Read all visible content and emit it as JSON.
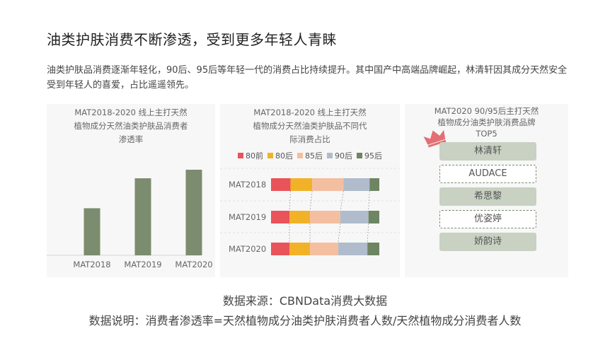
{
  "title": "油类护肤消费不断渗透，受到更多年轻人青睐",
  "paragraph": "油类护肤品消费逐渐年轻化，90后、95后等年轻一代的消费占比持续提升。其中国产中高端品牌崛起，林清轩因其成分天然安全受到年轻人的喜爱，占比遥遥领先。",
  "chart_data": [
    {
      "type": "bar",
      "title": "MAT2018-2020 线上主打天然植物成分天然油类护肤品消费者渗透率",
      "title_lines": [
        "MAT2018-2020 线上主打天然",
        "植物成分天然油类护肤品消费者",
        "渗透率"
      ],
      "categories": [
        "MAT2018",
        "MAT2019",
        "MAT2020"
      ],
      "values": [
        55,
        90,
        100
      ],
      "ylim": [
        0,
        100
      ],
      "color": "#7b8c6f"
    },
    {
      "type": "bar",
      "stacked": true,
      "orientation": "horizontal",
      "title": "MAT2018-2020 线上主打天然植物成分天然油类护肤品不同代际消费占比",
      "title_lines": [
        "MAT2018-2020 线上主打天然",
        "植物成分天然油类护肤品不同代",
        "际消费占比"
      ],
      "categories": [
        "MAT2018",
        "MAT2019",
        "MAT2020"
      ],
      "xlim": [
        0,
        100
      ],
      "series": [
        {
          "name": "80前",
          "color": "#e8545a",
          "values": [
            18,
            17,
            17
          ]
        },
        {
          "name": "80后",
          "color": "#f2b228",
          "values": [
            20,
            19,
            19
          ]
        },
        {
          "name": "85后",
          "color": "#f4bea0",
          "values": [
            29,
            28,
            26
          ]
        },
        {
          "name": "90后",
          "color": "#b0bccc",
          "values": [
            24,
            26,
            27
          ]
        },
        {
          "name": "95后",
          "color": "#6d8563",
          "values": [
            9,
            10,
            11
          ]
        }
      ]
    }
  ],
  "top5": {
    "title_lines": [
      "MAT2020 90/95后主打天然",
      "植物成分油类护肤消费品牌",
      "TOP5"
    ],
    "brands": [
      "林清轩",
      "AUDACE",
      "希思黎",
      "优姿婷",
      "娇韵诗"
    ],
    "crown_color": "#e36f72"
  },
  "footer": {
    "source": "数据来源：CBNData消费大数据",
    "note": "数据说明：消费者渗透率=天然植物成分油类护肤消费者人数/天然植物成分消费者人数"
  }
}
